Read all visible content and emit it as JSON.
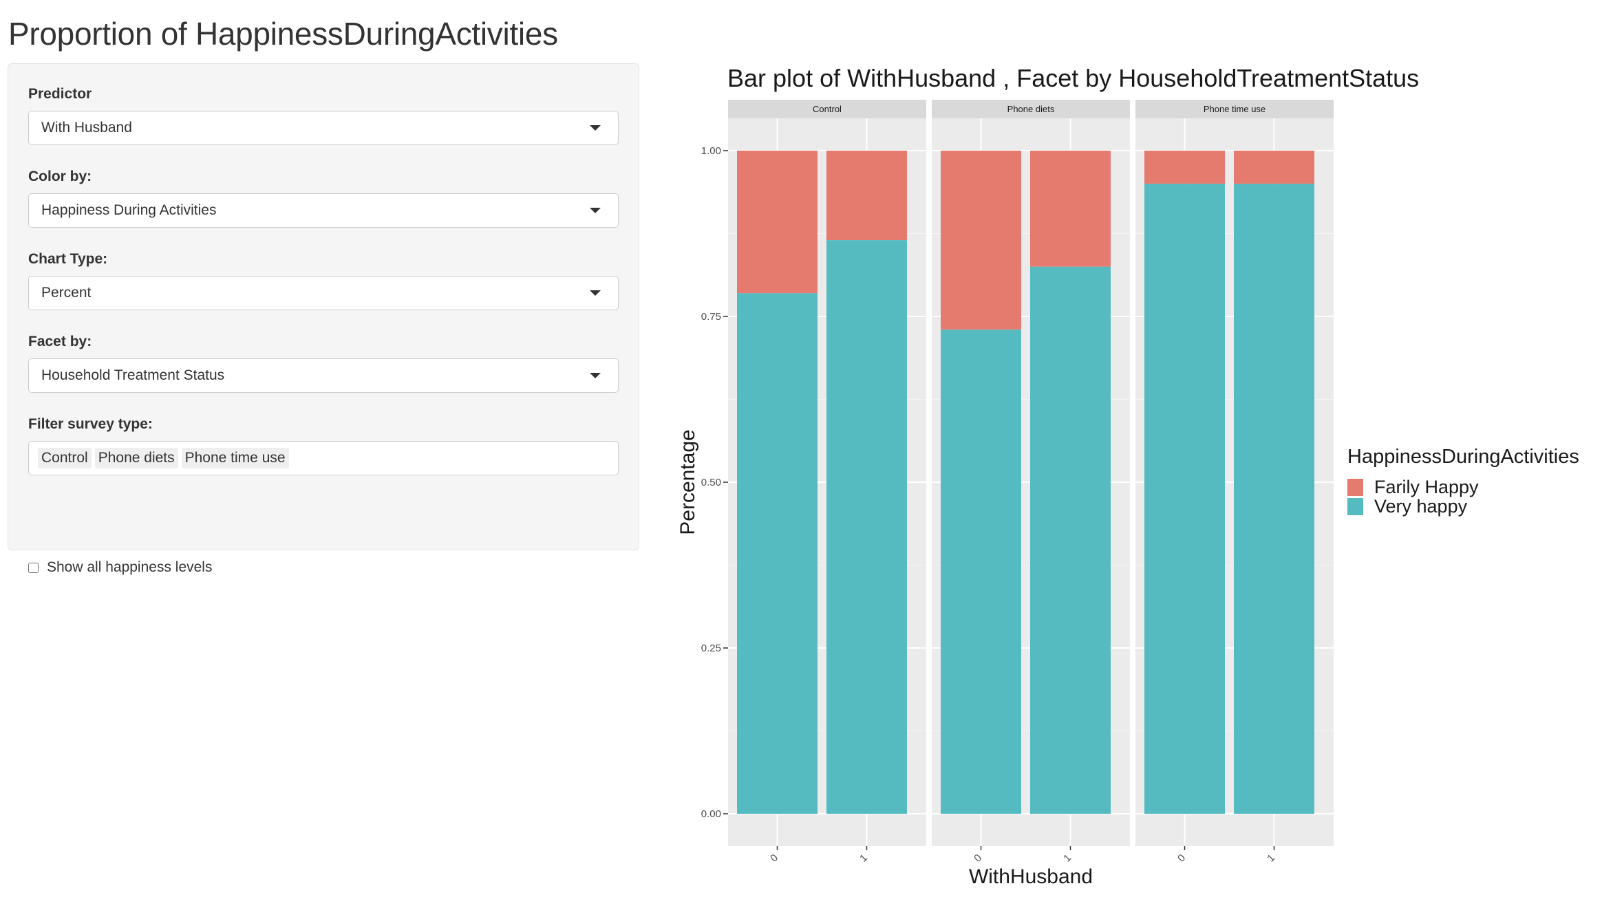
{
  "app": {
    "title": "Proportion of HappinessDuringActivities"
  },
  "sidebar": {
    "predictor": {
      "label": "Predictor",
      "value": "With Husband"
    },
    "color_by": {
      "label": "Color by:",
      "value": "Happiness During Activities"
    },
    "chart_type": {
      "label": "Chart Type:",
      "value": "Percent"
    },
    "facet_by": {
      "label": "Facet by:",
      "value": "Household Treatment Status"
    },
    "filter": {
      "label": "Filter survey type:",
      "tags": [
        "Control",
        "Phone diets",
        "Phone time use"
      ]
    },
    "show_all": {
      "label": "Show all happiness levels",
      "checked": false
    }
  },
  "colors": {
    "farily_happy": "#e57b6f",
    "very_happy": "#55bbc1",
    "panel_bg": "#ebebeb",
    "strip_bg": "#d9d9d9"
  },
  "chart_data": {
    "type": "bar",
    "stacked": true,
    "title": "Bar plot of WithHusband , Facet by HouseholdTreatmentStatus",
    "xlabel": "WithHusband",
    "ylabel": "Percentage",
    "ylim": [
      0,
      1
    ],
    "yticks": [
      "0.00",
      "0.25",
      "0.50",
      "0.75",
      "1.00"
    ],
    "categories": [
      "0",
      "1"
    ],
    "legend_title": "HappinessDuringActivities",
    "legend_position": "right",
    "grid": true,
    "facets": [
      {
        "label": "Control",
        "series": [
          {
            "name": "Farily Happy",
            "values": [
              0.215,
              0.135
            ]
          },
          {
            "name": "Very happy",
            "values": [
              0.785,
              0.865
            ]
          }
        ]
      },
      {
        "label": "Phone diets",
        "series": [
          {
            "name": "Farily Happy",
            "values": [
              0.27,
              0.175
            ]
          },
          {
            "name": "Very happy",
            "values": [
              0.73,
              0.825
            ]
          }
        ]
      },
      {
        "label": "Phone time use",
        "series": [
          {
            "name": "Farily Happy",
            "values": [
              0.05,
              0.05
            ]
          },
          {
            "name": "Very happy",
            "values": [
              0.95,
              0.95
            ]
          }
        ]
      }
    ]
  }
}
